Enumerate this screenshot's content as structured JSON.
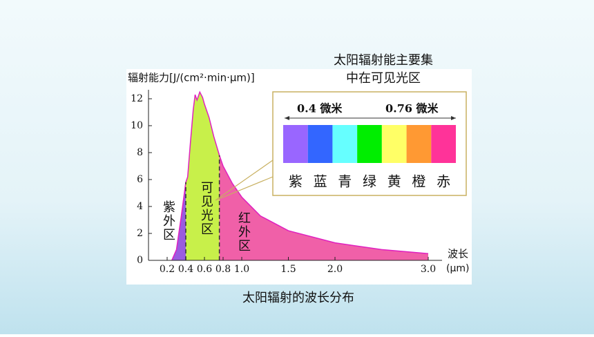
{
  "chart_data": {
    "type": "area",
    "title": "太阳辐射的波长分布",
    "y_label": "辐射能力[J/(cm²·min·μm)]",
    "x_label": "波长",
    "x_unit": "(μm)",
    "annotation": [
      "太阳辐射能主要集",
      "中在可见光区"
    ],
    "x": [
      0.25,
      0.3,
      0.35,
      0.4,
      0.42,
      0.45,
      0.48,
      0.5,
      0.52,
      0.55,
      0.58,
      0.6,
      0.65,
      0.7,
      0.76,
      0.8,
      0.9,
      1.0,
      1.2,
      1.5,
      2.0,
      2.5,
      3.0
    ],
    "series": [
      {
        "name": "辐射能力",
        "color": "#e020c0",
        "values": [
          0,
          0.8,
          3.2,
          5.8,
          6.2,
          8.8,
          11.2,
          12.3,
          11.9,
          12.5,
          12.1,
          11.6,
          10.6,
          9.2,
          7.8,
          7.0,
          5.7,
          4.7,
          3.3,
          2.2,
          1.3,
          0.8,
          0.5
        ]
      }
    ],
    "regions": [
      {
        "name": "紫外区",
        "start": 0.25,
        "end": 0.4,
        "color": "#9a5ce0"
      },
      {
        "name": "可见光区",
        "start": 0.4,
        "end": 0.76,
        "color": "#c8f04a"
      },
      {
        "name": "红外区",
        "start": 0.76,
        "end": 3.0,
        "color": "#f060a8"
      }
    ],
    "xlim": [
      0,
      3.2
    ],
    "xticks": [
      0.2,
      0.4,
      0.6,
      0.8,
      {
        "value": 1,
        "label": "1.0"
      },
      1.5,
      {
        "value": 2,
        "label": "2.0"
      },
      {
        "value": 3,
        "label": "3.0"
      }
    ],
    "ylim": [
      0,
      12.5
    ],
    "yticks": [
      0,
      2,
      4,
      6,
      8,
      10,
      12
    ],
    "spectrum": {
      "range_labels": [
        "0.4 微米",
        "0.76 微米"
      ],
      "labels": [
        "紫",
        "蓝",
        "青",
        "绿",
        "黄",
        "橙",
        "赤"
      ],
      "colors": [
        "#9966ff",
        "#3366ff",
        "#66ffff",
        "#00ee00",
        "#ffff66",
        "#ff9933",
        "#ff3399"
      ]
    }
  }
}
